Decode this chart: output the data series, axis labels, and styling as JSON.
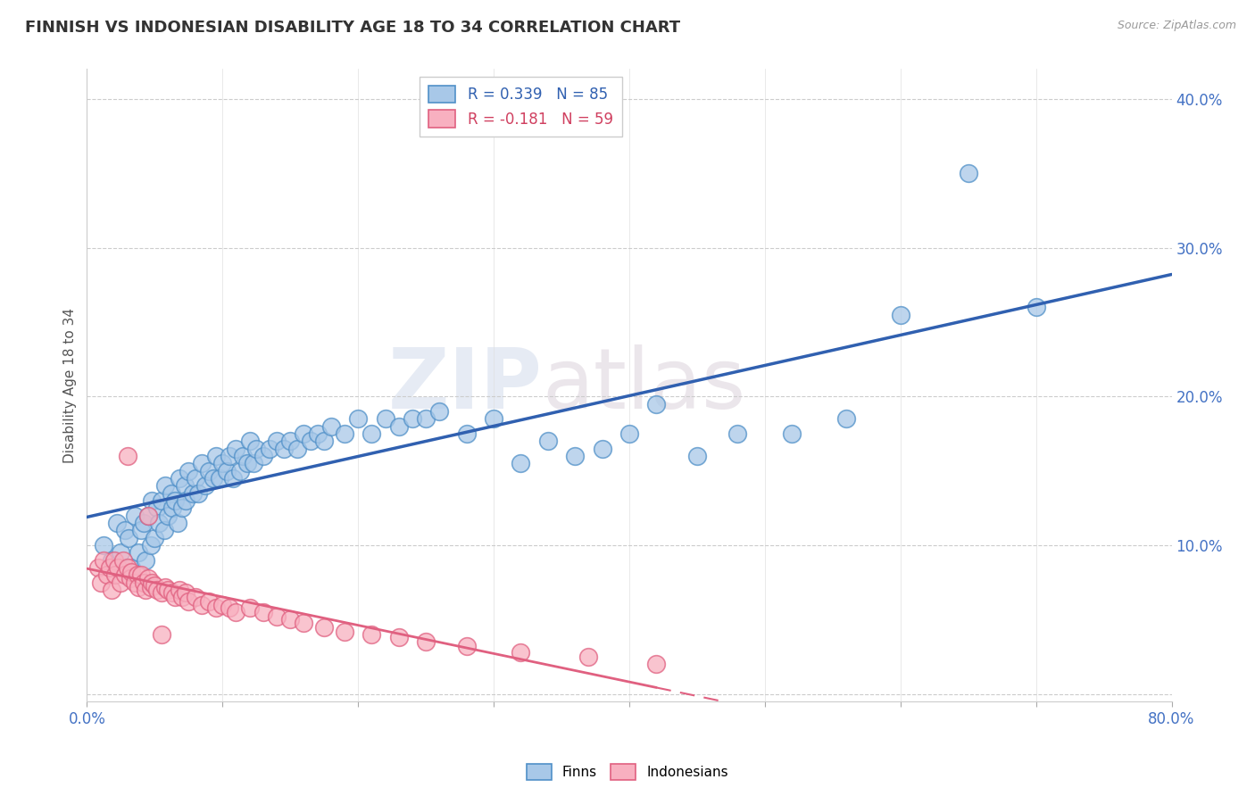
{
  "title": "FINNISH VS INDONESIAN DISABILITY AGE 18 TO 34 CORRELATION CHART",
  "source": "Source: ZipAtlas.com",
  "ylabel": "Disability Age 18 to 34",
  "legend_label1": "Finns",
  "legend_label2": "Indonesians",
  "R1": 0.339,
  "N1": 85,
  "R2": -0.181,
  "N2": 59,
  "xlim": [
    0.0,
    0.8
  ],
  "ylim": [
    -0.005,
    0.42
  ],
  "yticks": [
    0.0,
    0.1,
    0.2,
    0.3,
    0.4
  ],
  "ytick_labels": [
    "",
    "10.0%",
    "20.0%",
    "30.0%",
    "40.0%"
  ],
  "color_finn": "#a8c8e8",
  "color_finn_edge": "#5090c8",
  "color_finn_line": "#3060b0",
  "color_indonesian": "#f8b0c0",
  "color_indonesian_edge": "#e06080",
  "color_indonesian_line": "#e06080",
  "background_color": "#ffffff",
  "grid_color": "#cccccc",
  "watermark_color": "#dce4f0",
  "finn_x": [
    0.012,
    0.018,
    0.022,
    0.025,
    0.028,
    0.031,
    0.033,
    0.035,
    0.038,
    0.04,
    0.042,
    0.043,
    0.045,
    0.047,
    0.048,
    0.05,
    0.052,
    0.053,
    0.055,
    0.057,
    0.058,
    0.06,
    0.062,
    0.063,
    0.065,
    0.067,
    0.068,
    0.07,
    0.072,
    0.073,
    0.075,
    0.078,
    0.08,
    0.082,
    0.085,
    0.087,
    0.09,
    0.093,
    0.095,
    0.098,
    0.1,
    0.103,
    0.105,
    0.108,
    0.11,
    0.113,
    0.115,
    0.118,
    0.12,
    0.123,
    0.125,
    0.13,
    0.135,
    0.14,
    0.145,
    0.15,
    0.155,
    0.16,
    0.165,
    0.17,
    0.175,
    0.18,
    0.19,
    0.2,
    0.21,
    0.22,
    0.23,
    0.24,
    0.25,
    0.26,
    0.28,
    0.3,
    0.32,
    0.34,
    0.36,
    0.38,
    0.4,
    0.42,
    0.45,
    0.48,
    0.52,
    0.56,
    0.6,
    0.65,
    0.7
  ],
  "finn_y": [
    0.1,
    0.09,
    0.115,
    0.095,
    0.11,
    0.105,
    0.085,
    0.12,
    0.095,
    0.11,
    0.115,
    0.09,
    0.12,
    0.1,
    0.13,
    0.105,
    0.125,
    0.115,
    0.13,
    0.11,
    0.14,
    0.12,
    0.135,
    0.125,
    0.13,
    0.115,
    0.145,
    0.125,
    0.14,
    0.13,
    0.15,
    0.135,
    0.145,
    0.135,
    0.155,
    0.14,
    0.15,
    0.145,
    0.16,
    0.145,
    0.155,
    0.15,
    0.16,
    0.145,
    0.165,
    0.15,
    0.16,
    0.155,
    0.17,
    0.155,
    0.165,
    0.16,
    0.165,
    0.17,
    0.165,
    0.17,
    0.165,
    0.175,
    0.17,
    0.175,
    0.17,
    0.18,
    0.175,
    0.185,
    0.175,
    0.185,
    0.18,
    0.185,
    0.185,
    0.19,
    0.175,
    0.185,
    0.155,
    0.17,
    0.16,
    0.165,
    0.175,
    0.195,
    0.16,
    0.175,
    0.175,
    0.185,
    0.255,
    0.35,
    0.26
  ],
  "indonesian_x": [
    0.008,
    0.01,
    0.012,
    0.015,
    0.017,
    0.018,
    0.02,
    0.021,
    0.023,
    0.025,
    0.027,
    0.028,
    0.03,
    0.032,
    0.033,
    0.035,
    0.037,
    0.038,
    0.04,
    0.042,
    0.043,
    0.045,
    0.047,
    0.048,
    0.05,
    0.052,
    0.055,
    0.058,
    0.06,
    0.063,
    0.065,
    0.068,
    0.07,
    0.073,
    0.075,
    0.08,
    0.085,
    0.09,
    0.095,
    0.1,
    0.105,
    0.11,
    0.12,
    0.13,
    0.14,
    0.15,
    0.16,
    0.175,
    0.19,
    0.21,
    0.23,
    0.25,
    0.28,
    0.32,
    0.37,
    0.42,
    0.03,
    0.045,
    0.055
  ],
  "indonesian_y": [
    0.085,
    0.075,
    0.09,
    0.08,
    0.085,
    0.07,
    0.09,
    0.08,
    0.085,
    0.075,
    0.09,
    0.08,
    0.085,
    0.078,
    0.082,
    0.075,
    0.08,
    0.072,
    0.08,
    0.075,
    0.07,
    0.078,
    0.072,
    0.075,
    0.073,
    0.07,
    0.068,
    0.072,
    0.07,
    0.068,
    0.065,
    0.07,
    0.065,
    0.068,
    0.062,
    0.065,
    0.06,
    0.062,
    0.058,
    0.06,
    0.058,
    0.055,
    0.058,
    0.055,
    0.052,
    0.05,
    0.048,
    0.045,
    0.042,
    0.04,
    0.038,
    0.035,
    0.032,
    0.028,
    0.025,
    0.02,
    0.16,
    0.12,
    0.04
  ]
}
